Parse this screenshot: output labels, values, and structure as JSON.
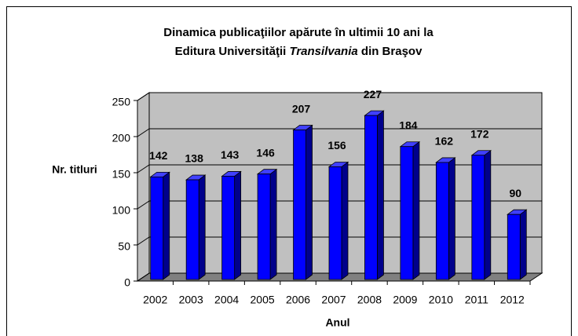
{
  "chart_data": {
    "type": "bar3d",
    "title": [
      [
        {
          "text": "Dinamica publicaţiilor apărute în ultimii 10 ani la"
        }
      ],
      [
        {
          "text": "Editura Universităţii "
        },
        {
          "text": "Transilvania",
          "italic": true
        },
        {
          "text": " din Braşov"
        }
      ]
    ],
    "x_label": "Anul",
    "y_label": "Nr. titluri",
    "categories": [
      "2002",
      "2003",
      "2004",
      "2005",
      "2006",
      "2007",
      "2008",
      "2009",
      "2010",
      "2011",
      "2012"
    ],
    "values": [
      142,
      138,
      143,
      146,
      207,
      156,
      227,
      184,
      162,
      172,
      90
    ],
    "color": "#0000ff",
    "ylim": [
      0,
      250
    ],
    "yticks": [
      0,
      50,
      100,
      150,
      200,
      250
    ],
    "grid": true
  }
}
